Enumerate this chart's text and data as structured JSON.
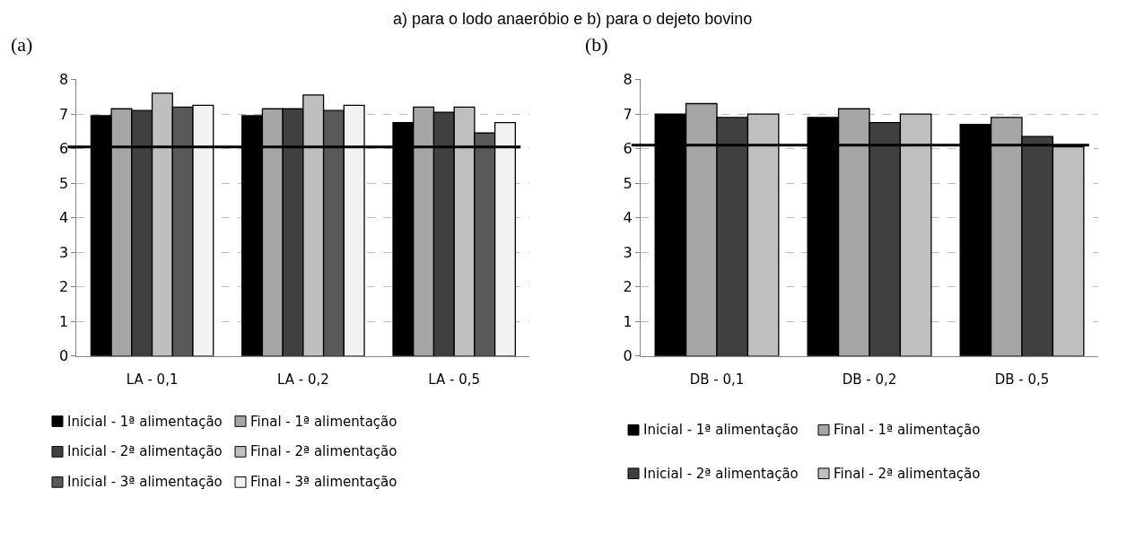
{
  "chart_data": [
    {
      "type": "bar",
      "title": "(a)",
      "annotations": [
        "a) para o lodo anaeróbio e b) para o dejeto bovino"
      ],
      "categories": [
        "LA - 0,1",
        "LA - 0,2",
        "LA - 0,5"
      ],
      "series": [
        {
          "name": "Inicial - 1ª alimentação",
          "color": "#000000",
          "values": [
            6.95,
            6.95,
            6.75
          ]
        },
        {
          "name": "Final - 1ª alimentação",
          "color": "#a6a6a6",
          "values": [
            7.15,
            7.15,
            7.2
          ]
        },
        {
          "name": "Inicial - 2ª alimentação",
          "color": "#404040",
          "values": [
            7.1,
            7.15,
            7.05
          ]
        },
        {
          "name": "Final - 2ª alimentação",
          "color": "#bfbfbf",
          "values": [
            7.6,
            7.55,
            7.2
          ]
        },
        {
          "name": "Inicial - 3ª alimentação",
          "color": "#595959",
          "values": [
            7.2,
            7.1,
            6.45
          ]
        },
        {
          "name": "Final - 3ª alimentação",
          "color": "#f2f2f2",
          "values": [
            7.25,
            7.25,
            6.75
          ]
        }
      ],
      "ylim": [
        0,
        8
      ],
      "yticks": [
        0,
        1,
        2,
        3,
        4,
        5,
        6,
        7,
        8
      ],
      "grid": "y",
      "legend": "bottom",
      "ref_lines": [
        {
          "axis": "y",
          "value": 6.05,
          "color": "#000000"
        }
      ]
    },
    {
      "type": "bar",
      "title": "(b)",
      "categories": [
        "DB - 0,1",
        "DB - 0,2",
        "DB - 0,5"
      ],
      "series": [
        {
          "name": "Inicial - 1ª alimentação",
          "color": "#000000",
          "values": [
            7.0,
            6.9,
            6.7
          ]
        },
        {
          "name": "Final - 1ª alimentação",
          "color": "#a6a6a6",
          "values": [
            7.3,
            7.15,
            6.9
          ]
        },
        {
          "name": "Inicial - 2ª alimentação",
          "color": "#404040",
          "values": [
            6.9,
            6.75,
            6.35
          ]
        },
        {
          "name": "Final - 2ª alimentação",
          "color": "#bfbfbf",
          "values": [
            7.0,
            7.0,
            6.05
          ]
        }
      ],
      "ylim": [
        0,
        8
      ],
      "yticks": [
        0,
        1,
        2,
        3,
        4,
        5,
        6,
        7,
        8
      ],
      "grid": "y",
      "legend": "bottom",
      "ref_lines": [
        {
          "axis": "y",
          "value": 6.1,
          "color": "#000000"
        }
      ]
    }
  ]
}
